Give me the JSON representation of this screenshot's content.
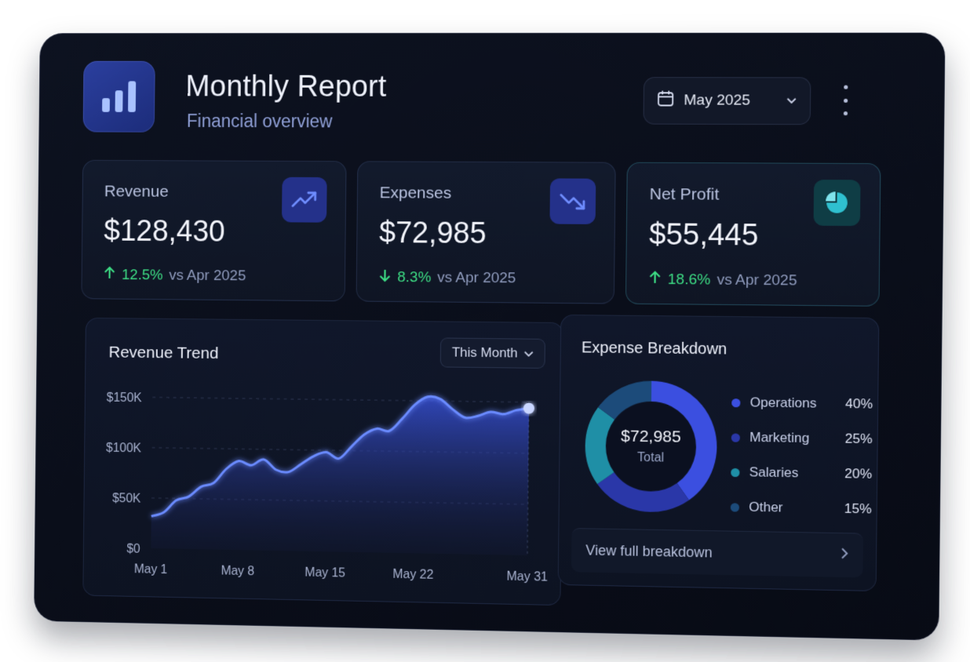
{
  "header": {
    "title": "Monthly Report",
    "subtitle": "Financial overview",
    "period_label": "May 2025"
  },
  "kpis": [
    {
      "title": "Revenue",
      "value": "$128,430",
      "direction": "up",
      "change": "12.5%",
      "compare": "vs Apr 2025",
      "icon": "trending-up-icon"
    },
    {
      "title": "Expenses",
      "value": "$72,985",
      "direction": "down",
      "change": "8.3%",
      "compare": "vs Apr 2025",
      "icon": "trending-down-icon"
    },
    {
      "title": "Net Profit",
      "value": "$55,445",
      "direction": "up",
      "change": "18.6%",
      "compare": "vs Apr 2025",
      "icon": "pie-chart-icon"
    }
  ],
  "trend": {
    "title": "Revenue Trend",
    "range_label": "This Month"
  },
  "breakdown": {
    "title": "Expense Breakdown",
    "total_value": "$72,985",
    "total_label": "Total",
    "footer_label": "View full breakdown"
  },
  "colors": {
    "accent": "#3b4fe0",
    "positive": "#3ddc84",
    "line": "#5a7bff",
    "teal": "#1f8fa6"
  },
  "chart_data": [
    {
      "type": "area",
      "title": "Revenue Trend",
      "xlabel": "",
      "ylabel": "",
      "x_ticks": [
        "May 1",
        "May 8",
        "May 15",
        "May 22",
        "May 31"
      ],
      "y_ticks": [
        "$0",
        "$50K",
        "$100K",
        "$150K"
      ],
      "ylim": [
        0,
        160000
      ],
      "grid": true,
      "x": [
        1,
        2,
        3,
        4,
        5,
        6,
        7,
        8,
        9,
        10,
        11,
        12,
        13,
        14,
        15,
        16,
        17,
        18,
        19,
        20,
        21,
        22,
        23,
        24,
        25,
        26,
        27,
        28,
        29,
        30,
        31
      ],
      "values": [
        32000,
        36000,
        48000,
        52000,
        62000,
        66000,
        80000,
        88000,
        84000,
        90000,
        80000,
        78000,
        86000,
        94000,
        98000,
        92000,
        104000,
        116000,
        122000,
        120000,
        132000,
        146000,
        154000,
        152000,
        142000,
        134000,
        136000,
        140000,
        138000,
        142000,
        144000
      ]
    },
    {
      "type": "pie",
      "title": "Expense Breakdown",
      "categories": [
        "Operations",
        "Marketing",
        "Salaries",
        "Other"
      ],
      "values": [
        40,
        25,
        20,
        15
      ],
      "labels": [
        "40%",
        "25%",
        "20%",
        "15%"
      ],
      "colors": [
        "#3b4fe0",
        "#2a37a8",
        "#1f8fa6",
        "#1c4b7a"
      ]
    }
  ]
}
